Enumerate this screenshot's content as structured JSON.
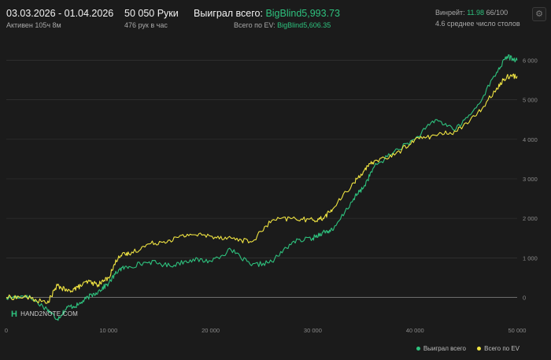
{
  "header": {
    "date_range": "03.03.2026 - 01.04.2026",
    "active_time": "Активен 105ч 8м",
    "hands_count": "50 050 Руки",
    "hands_per_hour": "476 рук в час",
    "won_total_label": "Выиграл всего:",
    "won_total_value": "BigBlind5,993.73",
    "ev_total_label": "Всего по EV:",
    "ev_total_value": "BigBlind5,606.35",
    "winrate_label": "Винрейт:",
    "winrate_value": "11.98",
    "winrate_suffix": "66/100",
    "avg_tables": "4.6 среднее число столов"
  },
  "settings_icon": "gear-icon",
  "logo_text": "HAND2NOTE.COM",
  "colors": {
    "background": "#1b1b1b",
    "won": "#2ec27e",
    "ev": "#f0e442",
    "grid": "#3a3a3a",
    "zero_line": "#8a8a8a"
  },
  "chart_data": {
    "type": "line",
    "xlim": [
      0,
      50000
    ],
    "ylim": [
      -650,
      6650
    ],
    "x_ticks": [
      0,
      10000,
      20000,
      30000,
      40000,
      50000
    ],
    "x_tick_labels": [
      "0",
      "10 000",
      "20 000",
      "30 000",
      "40 000",
      "50 000"
    ],
    "y_ticks": [
      0,
      1000,
      2000,
      3000,
      4000,
      5000,
      6000
    ],
    "y_tick_labels": [
      "0",
      "1 000",
      "2 000",
      "3 000",
      "4 000",
      "5 000",
      "6 000"
    ],
    "grid": true,
    "legend_position": "bottom-right",
    "series": [
      {
        "name": "Выиграл всего",
        "color": "#2ec27e",
        "x": [
          0,
          2000,
          4000,
          5000,
          6000,
          7000,
          8000,
          9000,
          10000,
          11000,
          12000,
          14000,
          16000,
          18000,
          20000,
          22000,
          24000,
          26000,
          28000,
          30000,
          31000,
          32000,
          34000,
          35000,
          36000,
          38000,
          40000,
          42000,
          44000,
          46000,
          48000,
          49000,
          50000
        ],
        "values": [
          -30,
          50,
          -300,
          -550,
          -250,
          -200,
          0,
          150,
          350,
          700,
          780,
          900,
          800,
          950,
          920,
          1200,
          800,
          900,
          1400,
          1500,
          1650,
          1700,
          2500,
          2800,
          3300,
          3700,
          4000,
          4500,
          4250,
          4800,
          5700,
          6100,
          6000
        ]
      },
      {
        "name": "Всего по EV",
        "color": "#f0e442",
        "x": [
          0,
          2000,
          4000,
          5000,
          6000,
          7000,
          8000,
          9000,
          10000,
          11000,
          12000,
          14000,
          16000,
          18000,
          20000,
          22000,
          24000,
          26000,
          28000,
          30000,
          31000,
          32000,
          34000,
          35000,
          36000,
          38000,
          40000,
          42000,
          44000,
          46000,
          48000,
          49000,
          50000
        ],
        "values": [
          0,
          0,
          -150,
          300,
          150,
          250,
          400,
          320,
          500,
          1050,
          1100,
          1350,
          1450,
          1600,
          1550,
          1500,
          1400,
          1950,
          2000,
          1950,
          2000,
          2250,
          2900,
          3200,
          3450,
          3600,
          4000,
          4100,
          4200,
          4600,
          5300,
          5600,
          5600
        ]
      }
    ]
  }
}
